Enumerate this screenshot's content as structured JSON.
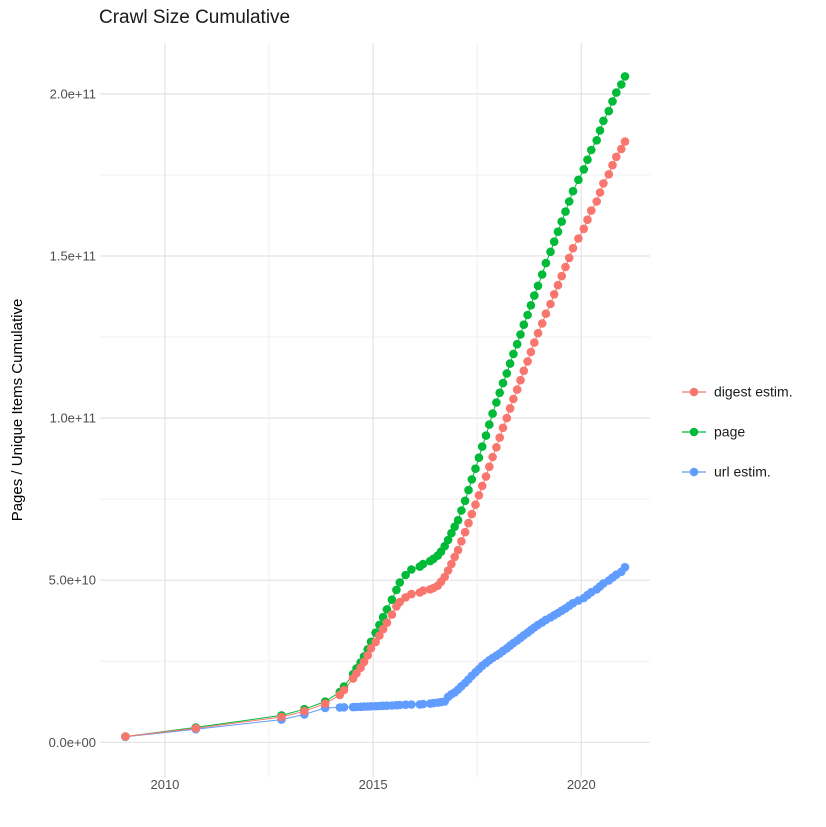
{
  "title": "Crawl Size Cumulative",
  "y_axis_title": "Pages / Unique Items Cumulative",
  "x_axis_title": "",
  "legend": {
    "position": "right",
    "items": [
      {
        "label": "digest estim.",
        "color": "#F8766D"
      },
      {
        "label": "page",
        "color": "#00BA38"
      },
      {
        "label": "url estim.",
        "color": "#619CFF"
      }
    ]
  },
  "colors": {
    "background": "#ffffff",
    "grid_major": "#e3e3e3",
    "grid_minor": "#f0f0f0",
    "tick_text": "#4d4d4d",
    "digest": "#F8766D",
    "page": "#00BA38",
    "url": "#619CFF"
  },
  "chart_data": {
    "type": "scatter",
    "title": "Crawl Size Cumulative",
    "xlabel": "",
    "ylabel": "Pages / Unique Items Cumulative",
    "grid": true,
    "legend_position": "right",
    "xlim": [
      2008.44,
      2021.65
    ],
    "ylim_1e9": [
      -10.7,
      215.7
    ],
    "x_ticks": {
      "major": [
        2010,
        2015,
        2020
      ],
      "labels": [
        "2010",
        "2015",
        "2020"
      ],
      "minor": [
        2012.5,
        2017.5
      ]
    },
    "y_ticks": {
      "major_values_1e9": [
        0,
        50,
        100,
        150,
        200
      ],
      "labels": [
        "0.0e+00",
        "5.0e+10",
        "1.0e+11",
        "1.5e+11",
        "2.0e+11"
      ],
      "minor_values_1e9": [
        25,
        75,
        125,
        175
      ]
    },
    "values_unit": "1e9 (billions of pages / unique items, cumulative)",
    "x_years": [
      2009.05,
      2010.74,
      2012.8,
      2013.35,
      2013.85,
      2014.2,
      2014.3,
      2014.52,
      2014.6,
      2014.7,
      2014.78,
      2014.87,
      2014.95,
      2015.06,
      2015.15,
      2015.24,
      2015.33,
      2015.45,
      2015.56,
      2015.64,
      2015.78,
      2015.92,
      2016.12,
      2016.2,
      2016.37,
      2016.45,
      2016.55,
      2016.63,
      2016.72,
      2016.8,
      2016.88,
      2016.96,
      2017.04,
      2017.12,
      2017.21,
      2017.29,
      2017.37,
      2017.46,
      2017.54,
      2017.62,
      2017.71,
      2017.79,
      2017.87,
      2017.96,
      2018.04,
      2018.12,
      2018.21,
      2018.29,
      2018.37,
      2018.46,
      2018.54,
      2018.62,
      2018.71,
      2018.79,
      2018.87,
      2018.96,
      2019.06,
      2019.15,
      2019.26,
      2019.35,
      2019.44,
      2019.53,
      2019.62,
      2019.71,
      2019.8,
      2019.93,
      2020.06,
      2020.15,
      2020.24,
      2020.37,
      2020.45,
      2020.53,
      2020.66,
      2020.75,
      2020.84,
      2020.96,
      2021.05
    ],
    "series": [
      {
        "name": "digest estim.",
        "color": "#F8766D",
        "values_1e9": [
          1.8,
          4.35,
          7.8,
          9.6,
          11.9,
          14.6,
          16.1,
          19.7,
          21.3,
          23.0,
          24.8,
          26.8,
          29.0,
          30.9,
          32.9,
          34.9,
          36.9,
          39.4,
          41.9,
          43.3,
          44.7,
          45.7,
          46.2,
          46.8,
          47.2,
          47.6,
          48.3,
          49.5,
          51.0,
          53.0,
          55.0,
          57.2,
          59.3,
          62.0,
          64.8,
          67.6,
          70.4,
          73.3,
          76.2,
          79.1,
          82.0,
          85.0,
          88.0,
          91.0,
          94.0,
          97.0,
          100.0,
          103.0,
          105.9,
          108.8,
          111.7,
          114.6,
          117.5,
          120.4,
          123.3,
          126.2,
          129.2,
          132.2,
          135.2,
          138.2,
          141.0,
          143.8,
          146.6,
          149.4,
          152.4,
          155.4,
          158.4,
          161.2,
          164.0,
          166.8,
          169.6,
          172.4,
          175.2,
          178.0,
          180.6,
          183.0,
          185.3
        ]
      },
      {
        "name": "page",
        "color": "#00BA38",
        "values_1e9": [
          1.75,
          4.6,
          8.3,
          10.2,
          12.6,
          15.5,
          17.2,
          21.0,
          22.8,
          24.6,
          26.5,
          28.7,
          31.0,
          33.8,
          36.2,
          38.6,
          41.0,
          44.0,
          47.0,
          49.3,
          51.6,
          53.3,
          54.2,
          55.0,
          55.9,
          56.6,
          57.6,
          58.8,
          60.5,
          62.4,
          64.5,
          66.5,
          68.5,
          71.5,
          74.5,
          77.8,
          81.1,
          84.4,
          87.8,
          91.2,
          94.6,
          98.0,
          101.4,
          104.8,
          107.8,
          110.8,
          113.8,
          116.8,
          119.8,
          122.8,
          125.8,
          128.8,
          131.8,
          134.8,
          137.8,
          140.8,
          144.3,
          147.8,
          151.3,
          154.4,
          157.5,
          160.6,
          163.7,
          166.8,
          170.0,
          173.5,
          176.7,
          179.7,
          182.7,
          185.7,
          188.7,
          191.7,
          194.7,
          197.7,
          200.4,
          202.9,
          205.4
        ]
      },
      {
        "name": "url estim.",
        "color": "#619CFF",
        "values_1e9": [
          1.7,
          4.05,
          7.0,
          8.6,
          10.6,
          10.75,
          10.8,
          10.85,
          10.9,
          10.95,
          11.0,
          11.05,
          11.1,
          11.15,
          11.2,
          11.25,
          11.3,
          11.35,
          11.45,
          11.5,
          11.6,
          11.65,
          11.7,
          11.8,
          11.95,
          12.1,
          12.25,
          12.4,
          12.6,
          14.0,
          14.8,
          15.4,
          16.3,
          17.3,
          18.3,
          19.4,
          20.5,
          21.6,
          22.6,
          23.6,
          24.5,
          25.3,
          26.0,
          26.7,
          27.4,
          28.2,
          29.0,
          29.8,
          30.6,
          31.4,
          32.2,
          33.0,
          33.8,
          34.6,
          35.4,
          36.2,
          37.0,
          37.8,
          38.5,
          39.2,
          39.9,
          40.6,
          41.3,
          42.1,
          42.9,
          43.7,
          44.5,
          45.4,
          46.3,
          47.2,
          48.1,
          49.0,
          49.9,
          50.8,
          51.7,
          52.6,
          54.0
        ]
      }
    ],
    "draw_order": [
      "page",
      "url estim.",
      "digest estim."
    ]
  }
}
